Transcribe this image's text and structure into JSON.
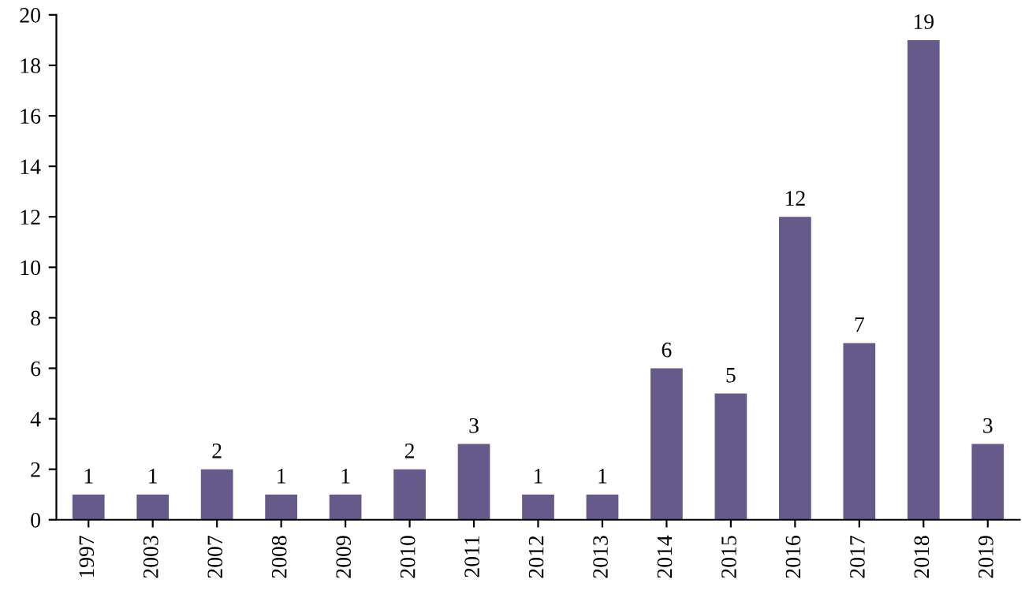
{
  "chart_data": {
    "type": "bar",
    "categories": [
      "1997",
      "2003",
      "2007",
      "2008",
      "2009",
      "2010",
      "2011",
      "2012",
      "2013",
      "2014",
      "2015",
      "2016",
      "2017",
      "2018",
      "2019"
    ],
    "values": [
      1,
      1,
      2,
      1,
      1,
      2,
      3,
      1,
      1,
      6,
      5,
      12,
      7,
      19,
      3
    ],
    "color": "#665a8a",
    "ylim": [
      0,
      20
    ],
    "yticks": [
      0,
      2,
      4,
      6,
      8,
      10,
      12,
      14,
      16,
      18,
      20
    ],
    "data_labels": true,
    "grid": false
  }
}
